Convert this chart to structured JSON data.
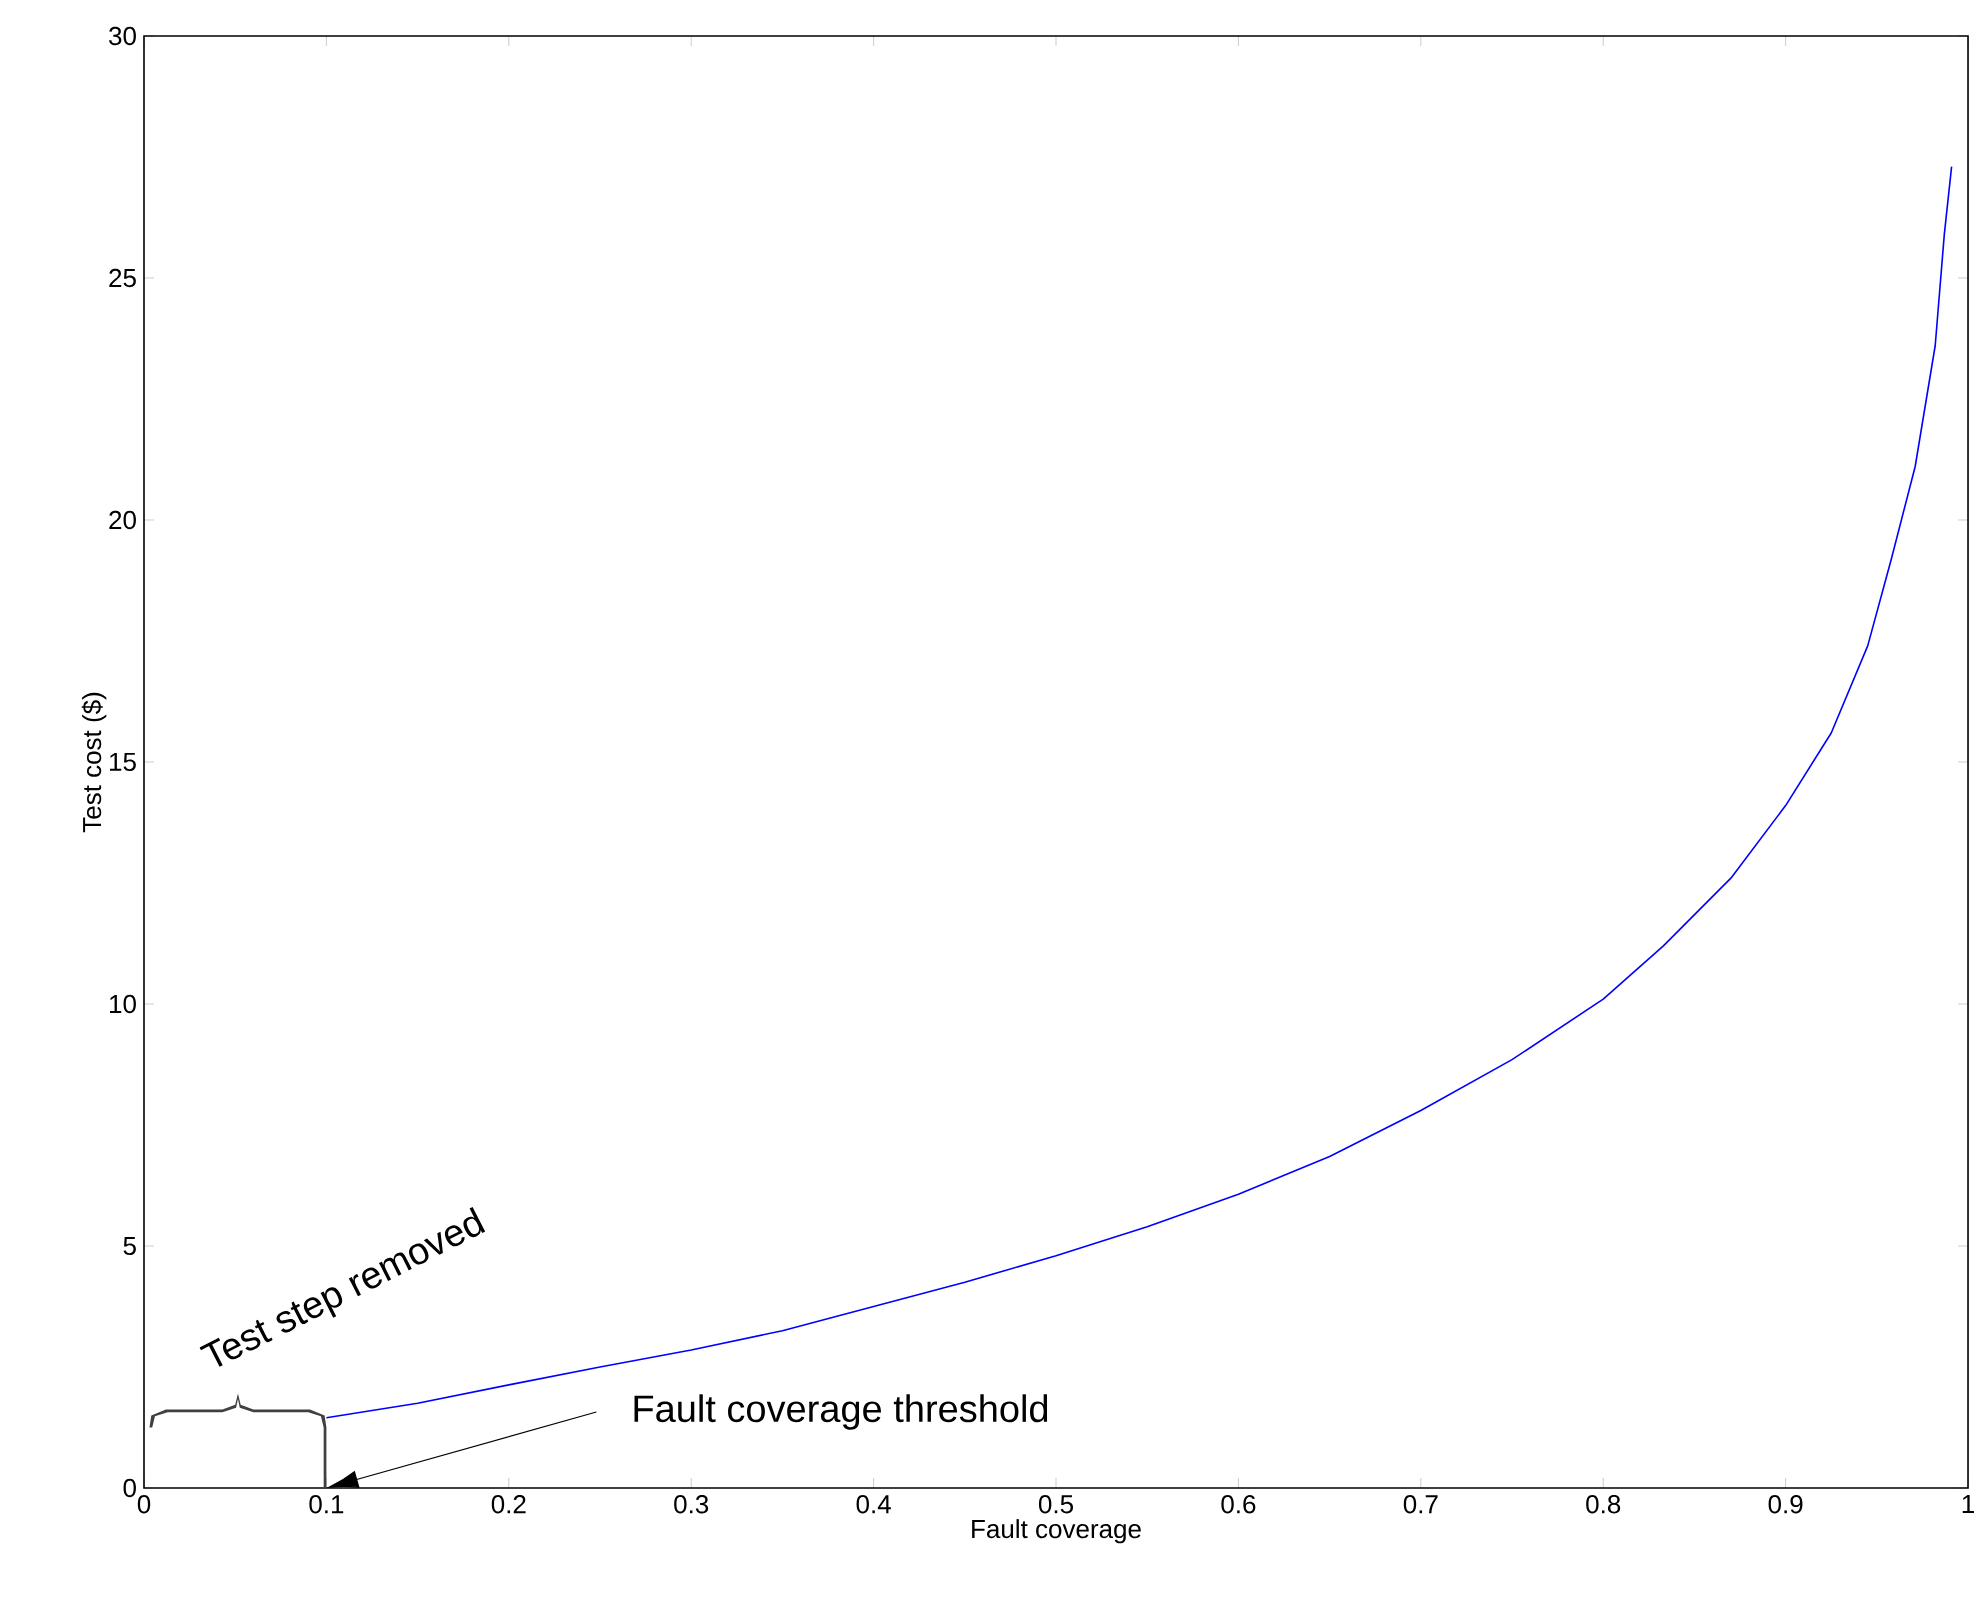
{
  "chart_data": {
    "type": "line",
    "xlabel": "Fault coverage",
    "ylabel": "Test cost ($)",
    "x": [
      0.1,
      0.15,
      0.2,
      0.25,
      0.3,
      0.35,
      0.4,
      0.45,
      0.5,
      0.55,
      0.6,
      0.65,
      0.7,
      0.75,
      0.8,
      0.833,
      0.87,
      0.9,
      0.925,
      0.945,
      0.958,
      0.971,
      0.982,
      0.987,
      0.991
    ],
    "series": [
      {
        "color": "#0000ff",
        "values": [
          1.45,
          1.75,
          2.13,
          2.5,
          2.85,
          3.25,
          3.75,
          4.25,
          4.8,
          5.4,
          6.07,
          6.85,
          7.8,
          8.85,
          10.1,
          11.2,
          12.6,
          14.1,
          15.6,
          17.4,
          19.2,
          21.1,
          23.6,
          25.9,
          27.3
        ]
      }
    ],
    "xlim": [
      0,
      1
    ],
    "ylim": [
      0,
      30
    ],
    "xticks": [
      0,
      0.1,
      0.2,
      0.3,
      0.4,
      0.5,
      0.6,
      0.7,
      0.8,
      0.9,
      1
    ],
    "yticks": [
      0,
      5,
      10,
      15,
      20,
      25,
      30
    ],
    "annotations": [
      "Fault coverage threshold",
      "Test step removed"
    ]
  }
}
